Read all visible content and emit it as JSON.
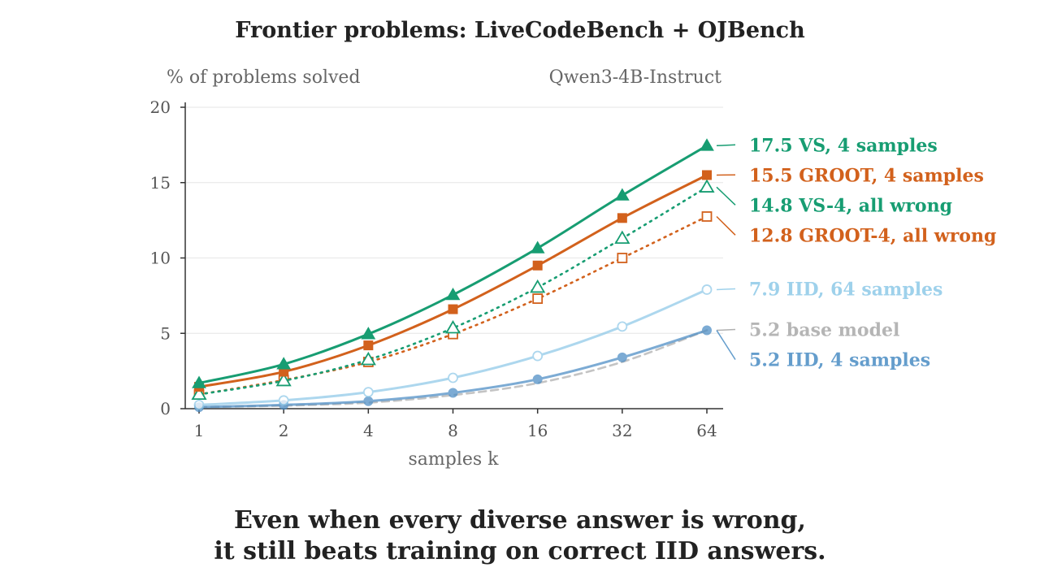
{
  "chart_data": {
    "type": "line",
    "title": "Frontier problems: LiveCodeBench + OJBench",
    "ylabel": "% of problems solved",
    "subtitle": "Qwen3-4B-Instruct",
    "xlabel": "samples k",
    "x": [
      1,
      2,
      4,
      8,
      16,
      32,
      64
    ],
    "x_tick_labels": [
      "1",
      "2",
      "4",
      "8",
      "16",
      "32",
      "64"
    ],
    "x_scale": "log2",
    "ylim": [
      0,
      20
    ],
    "y_ticks": [
      0,
      5,
      10,
      15,
      20
    ],
    "y_tick_labels": [
      "0",
      "5",
      "10",
      "15",
      "20"
    ],
    "grid": "horizontal",
    "legend": "end-of-line labels on right",
    "series": [
      {
        "name": "base model",
        "end_value_label": "5.2",
        "values": [
          0.1,
          0.2,
          0.4,
          0.9,
          1.7,
          3.1,
          5.2
        ],
        "color": "#c4c4c4",
        "line": "dashed",
        "marker": "none"
      },
      {
        "name": "IID, 4 samples",
        "end_value_label": "5.2",
        "values": [
          0.1,
          0.25,
          0.5,
          1.05,
          1.95,
          3.4,
          5.2
        ],
        "color": "#4a8cc4",
        "line": "solid",
        "marker": "filled-circle",
        "faded": true
      },
      {
        "name": "IID, 64 samples",
        "end_value_label": "7.9",
        "values": [
          0.25,
          0.55,
          1.1,
          2.05,
          3.5,
          5.45,
          7.9
        ],
        "color": "#8ec9e8",
        "line": "solid",
        "marker": "open-circle",
        "faded": true
      },
      {
        "name": "GROOT-4, all wrong",
        "end_value_label": "12.8",
        "values": [
          0.95,
          1.9,
          3.1,
          4.95,
          7.3,
          10.0,
          12.75
        ],
        "color": "#d2611c",
        "line": "dotted",
        "marker": "open-square"
      },
      {
        "name": "VS-4, all wrong",
        "end_value_label": "14.8",
        "values": [
          0.95,
          1.85,
          3.25,
          5.35,
          8.05,
          11.3,
          14.7
        ],
        "color": "#179d72",
        "line": "dotted",
        "marker": "open-triangle"
      },
      {
        "name": "GROOT, 4 samples",
        "end_value_label": "15.5",
        "values": [
          1.45,
          2.45,
          4.2,
          6.6,
          9.5,
          12.65,
          15.5
        ],
        "color": "#d2611c",
        "line": "solid",
        "marker": "filled-square"
      },
      {
        "name": "VS, 4 samples",
        "end_value_label": "17.5",
        "values": [
          1.7,
          2.95,
          4.95,
          7.55,
          10.65,
          14.15,
          17.45
        ],
        "color": "#179d72",
        "line": "solid",
        "marker": "filled-triangle"
      }
    ]
  },
  "caption": {
    "line1": "Even when every diverse answer is wrong,",
    "line2": "it still beats training on correct IID answers."
  }
}
